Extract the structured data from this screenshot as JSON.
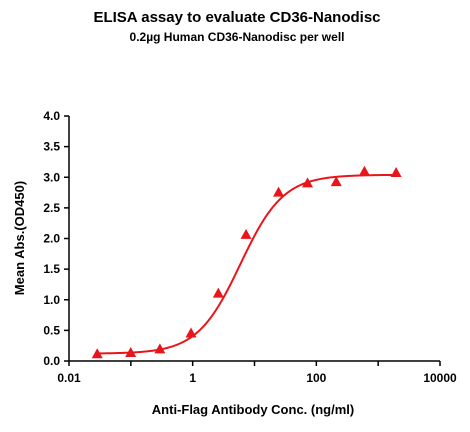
{
  "chart_data": {
    "type": "scatter",
    "title": "ELISA assay to evaluate CD36-Nanodisc",
    "subtitle": "0.2µg Human CD36-Nanodisc per well",
    "xlabel": "Anti-Flag Antibody Conc. (ng/ml)",
    "ylabel": "Mean Abs.(OD450)",
    "x_scale": "log10",
    "xlim": [
      0.01,
      10000
    ],
    "ylim": [
      0.0,
      4.0
    ],
    "x_tick_labels": [
      "0.01",
      "1",
      "100",
      "10000"
    ],
    "x_tick_values": [
      0.01,
      1,
      100,
      10000
    ],
    "y_tick_labels": [
      "0.0",
      "0.5",
      "1.0",
      "1.5",
      "2.0",
      "2.5",
      "3.0",
      "3.5",
      "4.0"
    ],
    "y_tick_values": [
      0,
      0.5,
      1.0,
      1.5,
      2.0,
      2.5,
      3.0,
      3.5,
      4.0
    ],
    "grid": false,
    "series": [
      {
        "color": "#e8161b",
        "marker": "triangle",
        "points": [
          {
            "x": 0.0286,
            "y": 0.11
          },
          {
            "x": 0.0994,
            "y": 0.13
          },
          {
            "x": 0.295,
            "y": 0.19
          },
          {
            "x": 0.94,
            "y": 0.45
          },
          {
            "x": 2.6,
            "y": 1.1
          },
          {
            "x": 7.3,
            "y": 2.06
          },
          {
            "x": 24.5,
            "y": 2.75
          },
          {
            "x": 72,
            "y": 2.9
          },
          {
            "x": 210,
            "y": 2.92
          },
          {
            "x": 600,
            "y": 3.09
          },
          {
            "x": 1950,
            "y": 3.07
          }
        ],
        "fit_curve": {
          "bottom": 0.12,
          "top": 3.04,
          "ec50": 5.9,
          "hill": 1.25
        }
      }
    ]
  }
}
